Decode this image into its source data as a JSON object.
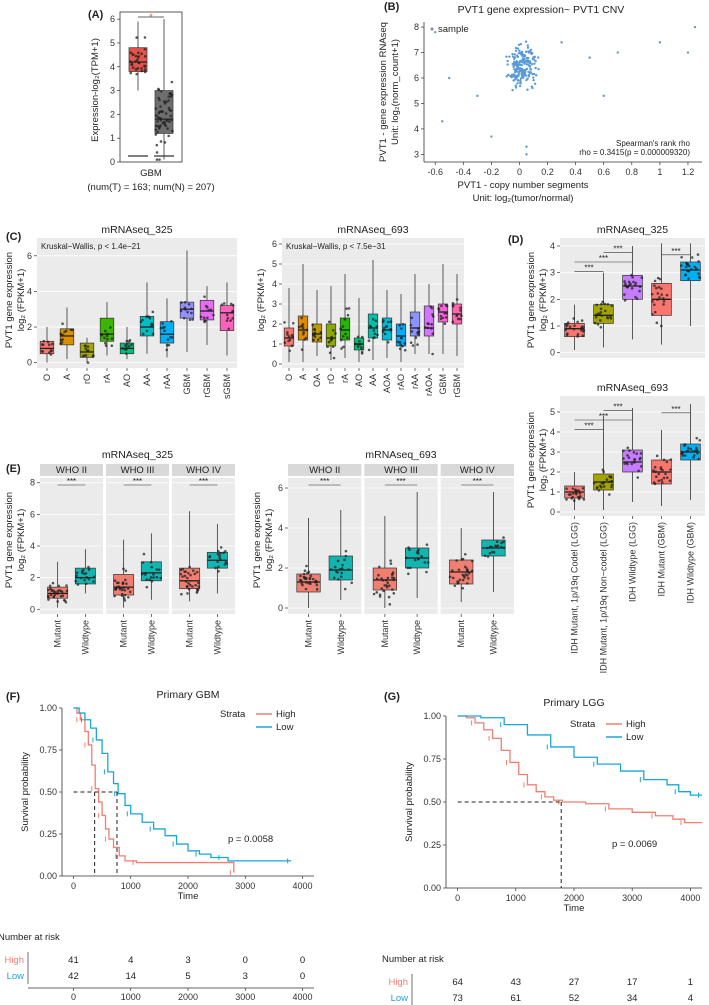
{
  "colors": {
    "tumor": "#E5534B",
    "normal": "#6E6E6E",
    "scatter": "#5B9BD5",
    "high": "#F07F72",
    "low": "#1BA6D8",
    "panel": "#EBEBEB",
    "strip": "#D9D9D9"
  },
  "panelA": {
    "label": "(A)",
    "ylabel": "Expression-log₂(TPM+1)",
    "group": "GBM",
    "note": "(num(T) = 163; num(N) = 207)",
    "yticks": [
      "0",
      "1",
      "2",
      "3",
      "4",
      "5",
      "6"
    ],
    "star": "*",
    "chart_data": {
      "type": "box",
      "ylim": [
        0,
        6.3
      ],
      "series": [
        {
          "name": "Tumor",
          "median": 4.2,
          "q1": 3.8,
          "q3": 4.8,
          "min": 3.0,
          "max": 5.9
        },
        {
          "name": "Normal",
          "median": 1.8,
          "q1": 1.2,
          "q3": 3.0,
          "min": 0.1,
          "max": 6.0
        }
      ]
    }
  },
  "panelB": {
    "label": "(B)",
    "title": "PVT1 gene expression~ PVT1 CNV",
    "legend": "sample",
    "ylabel1": "PVT1 - gene expression RNAseq",
    "ylabel2": "Unit: log₂(norm_count+1)",
    "xlabel1": "PVT1 - copy number segments",
    "xlabel2": "Unit: log₂(tumor/normal)",
    "stat1": "Spearman's rank rho",
    "stat2": "rho = 0.3415(p = 0.000009320)",
    "xticks": [
      "-0.6",
      "-0.4",
      "-0.2",
      "0",
      "0.2",
      "0.4",
      "0.6",
      "0.8",
      "1",
      "1.2"
    ],
    "yticks": [
      "3",
      "4",
      "5",
      "6",
      "7",
      "8"
    ],
    "chart_data": {
      "type": "scatter",
      "xlim": [
        -0.68,
        1.3
      ],
      "ylim": [
        2.7,
        8.2
      ],
      "center": [
        0.02,
        6.4
      ]
    }
  },
  "panelC": {
    "label": "(C)",
    "ylabel1": "PVT1 gene expression",
    "ylabel2": "log₂ (FPKM+1)",
    "left": {
      "title": "mRNAseq_325",
      "stat": "Kruskal−Wallis, p < 1.4e−21",
      "yticks": [
        "0",
        "2",
        "4",
        "6"
      ],
      "chart_data": {
        "type": "box",
        "ylim": [
          -0.3,
          7
        ],
        "categories": [
          "O",
          "A",
          "rO",
          "rA",
          "AO",
          "AA",
          "rAA",
          "GBM",
          "rGBM",
          "sGBM"
        ],
        "medians": [
          0.8,
          1.5,
          0.6,
          1.6,
          0.8,
          2.0,
          1.6,
          3.0,
          2.9,
          2.8
        ],
        "q1": [
          0.5,
          1.0,
          0.3,
          1.2,
          0.5,
          1.5,
          1.1,
          2.5,
          2.4,
          1.8
        ],
        "q3": [
          1.2,
          1.9,
          1.1,
          2.5,
          1.1,
          2.6,
          2.3,
          3.4,
          3.5,
          3.2
        ],
        "mins": [
          0.0,
          0.2,
          0.0,
          0.4,
          0.2,
          0.5,
          0.3,
          0.6,
          1.0,
          0.4
        ],
        "maxs": [
          2.0,
          3.1,
          1.4,
          3.4,
          2.0,
          4.5,
          3.6,
          6.3,
          4.3,
          4.5
        ],
        "colors": [
          "#F8766D",
          "#D89000",
          "#A3A500",
          "#39B600",
          "#00BF7D",
          "#00BFC4",
          "#00B0F6",
          "#9590FF",
          "#E76BF3",
          "#FF62BC"
        ]
      }
    },
    "right": {
      "title": "mRNAseq_693",
      "stat": "Kruskal−Wallis, p < 7.5e−31",
      "yticks": [
        "0",
        "1",
        "2",
        "3",
        "4",
        "5",
        "6"
      ],
      "chart_data": {
        "type": "box",
        "ylim": [
          -0.2,
          6.3
        ],
        "categories": [
          "O",
          "A",
          "OA",
          "rO",
          "rA",
          "AO",
          "AA",
          "AOA",
          "rAO",
          "rAA",
          "rAOA",
          "GBM",
          "rGBM"
        ],
        "medians": [
          1.3,
          1.7,
          1.5,
          1.3,
          1.7,
          1.0,
          1.8,
          1.7,
          1.4,
          1.8,
          1.8,
          2.6,
          2.5
        ],
        "q1": [
          0.9,
          1.2,
          1.1,
          0.9,
          1.2,
          0.7,
          1.3,
          1.2,
          0.9,
          1.4,
          1.4,
          2.1,
          2.0
        ],
        "q3": [
          1.8,
          2.4,
          2.0,
          2.0,
          2.3,
          1.3,
          2.5,
          2.3,
          2.0,
          2.6,
          2.9,
          3.0,
          3.0
        ],
        "mins": [
          0.1,
          0.1,
          0.4,
          0.2,
          0.3,
          0.1,
          0.2,
          0.3,
          0.1,
          0.5,
          0.5,
          0.5,
          0.4
        ],
        "maxs": [
          3.8,
          5.0,
          3.7,
          3.9,
          4.5,
          3.3,
          5.2,
          3.7,
          3.5,
          4.5,
          4.0,
          5.0,
          4.5
        ],
        "colors": [
          "#F8766D",
          "#E18A00",
          "#BE9C00",
          "#8CAB00",
          "#24B700",
          "#00BE70",
          "#00C1AB",
          "#00BBDA",
          "#00ACFC",
          "#8B93FF",
          "#D575FE",
          "#F962DD",
          "#FF65AC"
        ]
      }
    }
  },
  "panelD": {
    "label": "(D)",
    "ylabel1": "PVT1 gene expression",
    "ylabel2": "log₂ (FPKM+1)",
    "xlabels": [
      "IDH Mutant, 1p/19q Codel (LGG)",
      "IDH Mutant, 1p/19q Non−codel (LGG)",
      "IDH Wildtype (LGG)",
      "IDH Mutant (GBM)",
      "IDH Wildtype (GBM)"
    ],
    "top": {
      "title": "mRNAseq_325",
      "yticks": [
        "0",
        "1",
        "2",
        "3",
        "4"
      ],
      "sig": "***",
      "chart_data": {
        "type": "box",
        "ylim": [
          -0.2,
          4.3
        ],
        "medians": [
          0.9,
          1.4,
          2.5,
          2.0,
          3.1
        ],
        "q1": [
          0.6,
          1.1,
          2.0,
          1.4,
          2.7
        ],
        "q3": [
          1.1,
          1.8,
          2.9,
          2.6,
          3.4
        ],
        "mins": [
          0.1,
          0.2,
          0.5,
          0.3,
          1.0
        ],
        "maxs": [
          1.8,
          3.0,
          4.0,
          4.1,
          4.1
        ],
        "colors": [
          "#F8766D",
          "#A3A500",
          "#C77CFF",
          "#F8766D",
          "#00B0F6"
        ]
      }
    },
    "bottom": {
      "title": "mRNAseq_693",
      "yticks": [
        "0",
        "1",
        "2",
        "3",
        "4",
        "5"
      ],
      "sig": "***",
      "chart_data": {
        "type": "box",
        "ylim": [
          -0.2,
          5.8
        ],
        "medians": [
          1.0,
          1.5,
          2.5,
          2.0,
          3.0
        ],
        "q1": [
          0.7,
          1.1,
          2.0,
          1.4,
          2.6
        ],
        "q3": [
          1.3,
          1.9,
          3.1,
          2.6,
          3.4
        ],
        "mins": [
          0.1,
          0.1,
          0.5,
          0.3,
          0.6
        ],
        "maxs": [
          2.0,
          4.8,
          5.2,
          4.1,
          5.4
        ],
        "colors": [
          "#F8766D",
          "#A3A500",
          "#C77CFF",
          "#F8766D",
          "#00B0F6"
        ]
      }
    }
  },
  "panelE": {
    "label": "(E)",
    "ylabel1": "PVT1 gene expression",
    "ylabel2": "log₂ (FPKM+1)",
    "groups": [
      "WHO II",
      "WHO III",
      "WHO IV"
    ],
    "xlabels": [
      "Mutant",
      "Wildtype"
    ],
    "sig": "***",
    "left": {
      "title": "mRNAseq_325",
      "yticks": [
        "0",
        "2",
        "4",
        "6",
        "8"
      ],
      "chart_data": {
        "type": "box",
        "ylim": [
          -0.3,
          8.3
        ],
        "medians": [
          [
            1.0,
            2.0
          ],
          [
            1.4,
            2.3
          ],
          [
            1.8,
            3.1
          ]
        ],
        "q1": [
          [
            0.7,
            1.6
          ],
          [
            0.9,
            1.8
          ],
          [
            1.3,
            2.6
          ]
        ],
        "q3": [
          [
            1.4,
            2.6
          ],
          [
            2.2,
            3.0
          ],
          [
            2.6,
            3.6
          ]
        ],
        "mins": [
          [
            0.1,
            1.0
          ],
          [
            0.1,
            0.6
          ],
          [
            0.5,
            1.0
          ]
        ],
        "maxs": [
          [
            3.0,
            3.8
          ],
          [
            4.4,
            4.8
          ],
          [
            6.2,
            5.4
          ]
        ]
      }
    },
    "right": {
      "title": "mRNAseq_693",
      "yticks": [
        "0",
        "2",
        "4",
        "6"
      ],
      "chart_data": {
        "type": "box",
        "ylim": [
          -0.3,
          6.5
        ],
        "medians": [
          [
            1.3,
            1.9
          ],
          [
            1.4,
            2.5
          ],
          [
            1.8,
            3.0
          ]
        ],
        "q1": [
          [
            0.8,
            1.4
          ],
          [
            0.9,
            2.0
          ],
          [
            1.2,
            2.6
          ]
        ],
        "q3": [
          [
            1.7,
            2.6
          ],
          [
            2.0,
            3.0
          ],
          [
            2.4,
            3.4
          ]
        ],
        "mins": [
          [
            0.0,
            0.4
          ],
          [
            0.0,
            0.5
          ],
          [
            0.3,
            0.8
          ]
        ],
        "maxs": [
          [
            4.5,
            4.9
          ],
          [
            4.6,
            5.8
          ],
          [
            4.0,
            5.8
          ]
        ]
      }
    }
  },
  "panelF": {
    "label": "(F)",
    "title": "Primary GBM",
    "ylabel": "Survival probability",
    "xlabel": "Time",
    "strata": "Strata",
    "high": "High",
    "low": "Low",
    "pval": "p = 0.0058",
    "yticks": [
      "0.00",
      "0.25",
      "0.50",
      "0.75",
      "1.00"
    ],
    "xticks": [
      "0",
      "1000",
      "2000",
      "3000",
      "4000"
    ],
    "risk_title": "Number at risk",
    "risk_high": [
      "41",
      "4",
      "3",
      "0",
      "0"
    ],
    "risk_low": [
      "42",
      "14",
      "5",
      "3",
      "0"
    ],
    "chart_data": {
      "type": "line",
      "xlim": [
        -200,
        4200
      ],
      "ylim": [
        0,
        1
      ],
      "high": [
        [
          0,
          1
        ],
        [
          60,
          0.97
        ],
        [
          120,
          0.93
        ],
        [
          200,
          0.86
        ],
        [
          260,
          0.78
        ],
        [
          320,
          0.66
        ],
        [
          380,
          0.52
        ],
        [
          440,
          0.44
        ],
        [
          500,
          0.36
        ],
        [
          560,
          0.28
        ],
        [
          620,
          0.22
        ],
        [
          700,
          0.17
        ],
        [
          800,
          0.12
        ],
        [
          900,
          0.09
        ],
        [
          1100,
          0.08
        ],
        [
          2800,
          0.08
        ],
        [
          2800,
          0.02
        ]
      ],
      "low": [
        [
          0,
          1
        ],
        [
          100,
          0.97
        ],
        [
          200,
          0.93
        ],
        [
          300,
          0.88
        ],
        [
          400,
          0.81
        ],
        [
          500,
          0.73
        ],
        [
          600,
          0.62
        ],
        [
          700,
          0.55
        ],
        [
          780,
          0.49
        ],
        [
          900,
          0.42
        ],
        [
          1000,
          0.37
        ],
        [
          1200,
          0.32
        ],
        [
          1400,
          0.28
        ],
        [
          1600,
          0.24
        ],
        [
          1800,
          0.19
        ],
        [
          2000,
          0.15
        ],
        [
          2200,
          0.13
        ],
        [
          2400,
          0.11
        ],
        [
          2600,
          0.11
        ],
        [
          2700,
          0.09
        ],
        [
          3800,
          0.09
        ]
      ],
      "median_high": 370,
      "median_low": 760
    }
  },
  "panelG": {
    "label": "(G)",
    "title": "Primary LGG",
    "ylabel": "Survival probability",
    "xlabel": "Time",
    "strata": "Strata",
    "high": "High",
    "low": "Low",
    "pval": "p = 0.0069",
    "yticks": [
      "0.00",
      "0.25",
      "0.50",
      "0.75",
      "1.00"
    ],
    "xticks": [
      "0",
      "1000",
      "2000",
      "3000",
      "4000"
    ],
    "risk_title": "Number at risk",
    "risk_high": [
      "64",
      "43",
      "27",
      "17",
      "1"
    ],
    "risk_low": [
      "73",
      "61",
      "52",
      "34",
      "4"
    ],
    "chart_data": {
      "type": "line",
      "xlim": [
        -200,
        4200
      ],
      "ylim": [
        0,
        1
      ],
      "high": [
        [
          0,
          1
        ],
        [
          150,
          0.99
        ],
        [
          300,
          0.96
        ],
        [
          450,
          0.92
        ],
        [
          600,
          0.87
        ],
        [
          750,
          0.8
        ],
        [
          900,
          0.73
        ],
        [
          1050,
          0.66
        ],
        [
          1200,
          0.6
        ],
        [
          1350,
          0.56
        ],
        [
          1500,
          0.53
        ],
        [
          1650,
          0.51
        ],
        [
          1800,
          0.5
        ],
        [
          2200,
          0.49
        ],
        [
          2600,
          0.46
        ],
        [
          3000,
          0.44
        ],
        [
          3400,
          0.42
        ],
        [
          3700,
          0.4
        ],
        [
          3900,
          0.38
        ],
        [
          4200,
          0.38
        ]
      ],
      "low": [
        [
          0,
          1
        ],
        [
          400,
          0.99
        ],
        [
          800,
          0.95
        ],
        [
          1200,
          0.89
        ],
        [
          1600,
          0.82
        ],
        [
          2000,
          0.76
        ],
        [
          2400,
          0.72
        ],
        [
          2800,
          0.68
        ],
        [
          3200,
          0.63
        ],
        [
          3600,
          0.6
        ],
        [
          3800,
          0.56
        ],
        [
          4000,
          0.54
        ],
        [
          4200,
          0.54
        ]
      ],
      "median_high": 1780
    }
  }
}
